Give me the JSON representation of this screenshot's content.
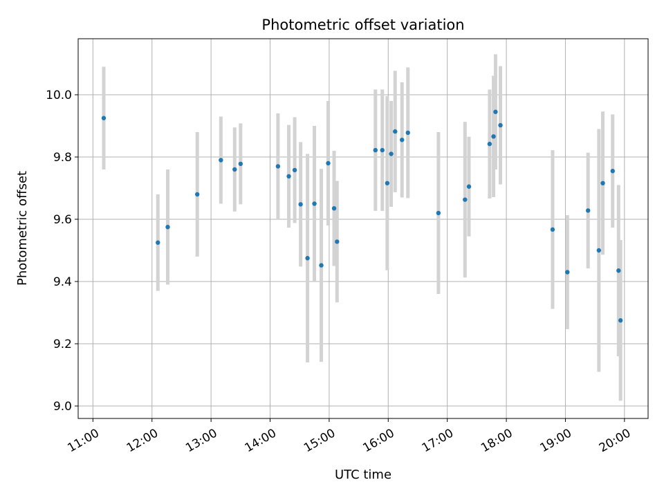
{
  "chart_data": {
    "type": "scatter",
    "title": "Photometric offset variation",
    "xlabel": "UTC time",
    "ylabel": "Photometric offset",
    "x_tick_labels": [
      "11:00",
      "12:00",
      "13:00",
      "14:00",
      "15:00",
      "16:00",
      "17:00",
      "18:00",
      "19:00",
      "20:00"
    ],
    "y_tick_labels": [
      "9.0",
      "9.2",
      "9.4",
      "9.6",
      "9.8",
      "10.0"
    ],
    "x_ticks": [
      "11:00",
      "12:00",
      "13:00",
      "14:00",
      "15:00",
      "16:00",
      "17:00",
      "18:00",
      "19:00",
      "20:00"
    ],
    "y_ticks": [
      9.0,
      9.2,
      9.4,
      9.6,
      9.8,
      10.0
    ],
    "xlim": [
      "10:45",
      "20:24"
    ],
    "ylim": [
      8.96,
      10.18
    ],
    "grid": true,
    "marker_color": "#1f77b4",
    "errorbar_color": "#d3d3d3",
    "points": [
      {
        "x": "11:11",
        "y": 9.925,
        "err": 0.165
      },
      {
        "x": "12:06",
        "y": 9.525,
        "err": 0.155
      },
      {
        "x": "12:16",
        "y": 9.575,
        "err": 0.185
      },
      {
        "x": "12:46",
        "y": 9.68,
        "err": 0.2
      },
      {
        "x": "13:10",
        "y": 9.79,
        "err": 0.14
      },
      {
        "x": "13:24",
        "y": 9.76,
        "err": 0.135
      },
      {
        "x": "13:30",
        "y": 9.778,
        "err": 0.13
      },
      {
        "x": "14:08",
        "y": 9.77,
        "err": 0.17
      },
      {
        "x": "14:19",
        "y": 9.738,
        "err": 0.165
      },
      {
        "x": "14:25",
        "y": 9.758,
        "err": 0.17
      },
      {
        "x": "14:31",
        "y": 9.648,
        "err": 0.2
      },
      {
        "x": "14:38",
        "y": 9.475,
        "err": 0.335
      },
      {
        "x": "14:45",
        "y": 9.65,
        "err": 0.25
      },
      {
        "x": "14:52",
        "y": 9.452,
        "err": 0.31
      },
      {
        "x": "14:59",
        "y": 9.78,
        "err": 0.2
      },
      {
        "x": "15:05",
        "y": 9.635,
        "err": 0.185
      },
      {
        "x": "15:08",
        "y": 9.528,
        "err": 0.195
      },
      {
        "x": "15:47",
        "y": 9.822,
        "err": 0.195
      },
      {
        "x": "15:54",
        "y": 9.822,
        "err": 0.195
      },
      {
        "x": "15:59",
        "y": 9.716,
        "err": 0.28
      },
      {
        "x": "16:03",
        "y": 9.81,
        "err": 0.17
      },
      {
        "x": "16:07",
        "y": 9.882,
        "err": 0.195
      },
      {
        "x": "16:14",
        "y": 9.855,
        "err": 0.185
      },
      {
        "x": "16:20",
        "y": 9.878,
        "err": 0.21
      },
      {
        "x": "16:51",
        "y": 9.62,
        "err": 0.26
      },
      {
        "x": "17:18",
        "y": 9.663,
        "err": 0.25
      },
      {
        "x": "17:22",
        "y": 9.705,
        "err": 0.16
      },
      {
        "x": "17:43",
        "y": 9.842,
        "err": 0.175
      },
      {
        "x": "17:47",
        "y": 9.866,
        "err": 0.195
      },
      {
        "x": "17:49",
        "y": 9.945,
        "err": 0.185
      },
      {
        "x": "17:54",
        "y": 9.902,
        "err": 0.19
      },
      {
        "x": "18:47",
        "y": 9.567,
        "err": 0.255
      },
      {
        "x": "19:02",
        "y": 9.43,
        "err": 0.183
      },
      {
        "x": "19:23",
        "y": 9.628,
        "err": 0.186
      },
      {
        "x": "19:34",
        "y": 9.5,
        "err": 0.39
      },
      {
        "x": "19:38",
        "y": 9.716,
        "err": 0.23
      },
      {
        "x": "19:48",
        "y": 9.755,
        "err": 0.182
      },
      {
        "x": "19:54",
        "y": 9.435,
        "err": 0.275
      },
      {
        "x": "19:56",
        "y": 9.275,
        "err": 0.258
      }
    ]
  }
}
